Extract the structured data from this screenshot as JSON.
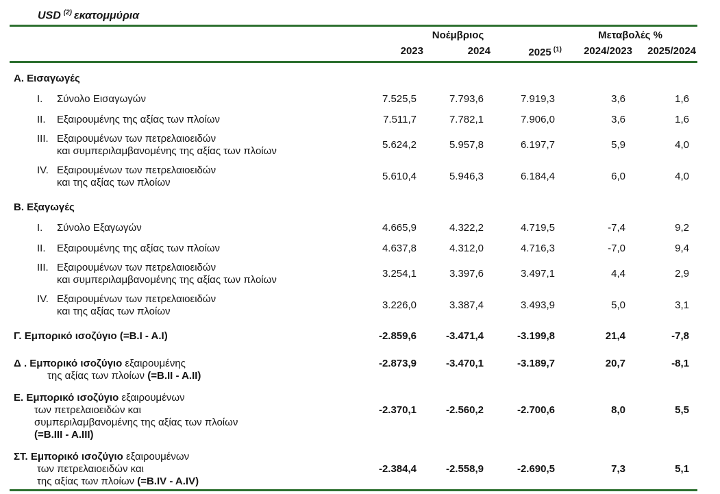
{
  "title": {
    "currency": "USD",
    "footnote_marker": "(2)",
    "unit": "εκατομμύρια"
  },
  "header": {
    "period_group": "Νοέμβριος",
    "changes_group": "Μεταβολές %",
    "columns": [
      {
        "label": "2023",
        "footnote": ""
      },
      {
        "label": "2024",
        "footnote": ""
      },
      {
        "label": "2025",
        "footnote": "(1)"
      },
      {
        "label": "2024/2023",
        "footnote": ""
      },
      {
        "label": "2025/2024",
        "footnote": ""
      }
    ]
  },
  "rows": [
    {
      "type": "section",
      "label": "Α. Εισαγωγές"
    },
    {
      "type": "item",
      "numeral": "I.",
      "lines": [
        "Σύνολο Εισαγωγών"
      ],
      "values": [
        "7.525,5",
        "7.793,6",
        "7.919,3",
        "3,6",
        "1,6"
      ]
    },
    {
      "type": "item",
      "numeral": "II.",
      "lines": [
        "Εξαιρουμένης της αξίας των πλοίων"
      ],
      "values": [
        "7.511,7",
        "7.782,1",
        "7.906,0",
        "3,6",
        "1,6"
      ]
    },
    {
      "type": "item",
      "numeral": "III.",
      "lines": [
        "Εξαιρουμένων των πετρελαιοειδών",
        "και συμπεριλαμβανομένης της αξίας των πλοίων"
      ],
      "values": [
        "5.624,2",
        "5.957,8",
        "6.197,7",
        "5,9",
        "4,0"
      ]
    },
    {
      "type": "item",
      "numeral": "IV.",
      "lines": [
        "Εξαιρουμένων των πετρελαιοειδών",
        "και  της αξίας των πλοίων"
      ],
      "values": [
        "5.610,4",
        "5.946,3",
        "6.184,4",
        "6,0",
        "4,0"
      ]
    },
    {
      "type": "section",
      "label": "Β. Εξαγωγές"
    },
    {
      "type": "item",
      "numeral": "I.",
      "lines": [
        "Σύνολο Εξαγωγών"
      ],
      "values": [
        "4.665,9",
        "4.322,2",
        "4.719,5",
        "-7,4",
        "9,2"
      ]
    },
    {
      "type": "item",
      "numeral": "II.",
      "lines": [
        "Εξαιρουμένης της αξίας των πλοίων"
      ],
      "values": [
        "4.637,8",
        "4.312,0",
        "4.716,3",
        "-7,0",
        "9,4"
      ]
    },
    {
      "type": "item",
      "numeral": "III.",
      "lines": [
        "Εξαιρουμένων των πετρελαιοειδών",
        "και συμπεριλαμβανομένης της αξίας των πλοίων"
      ],
      "values": [
        "3.254,1",
        "3.397,6",
        "3.497,1",
        "4,4",
        "2,9"
      ]
    },
    {
      "type": "item",
      "numeral": "IV.",
      "lines": [
        "Εξαιρουμένων των πετρελαιοειδών",
        "και της αξίας των πλοίων"
      ],
      "values": [
        "3.226,0",
        "3.387,4",
        "3.493,9",
        "5,0",
        "3,1"
      ]
    },
    {
      "type": "summary",
      "key": "g",
      "lines": [
        [
          {
            "t": "Γ. Εμπορικό ισοζύγιο (=B.I - A.I)",
            "b": true
          }
        ]
      ],
      "values": [
        "-2.859,6",
        "-3.471,4",
        "-3.199,8",
        "21,4",
        "-7,8"
      ]
    },
    {
      "type": "summary",
      "key": "d",
      "lines": [
        [
          {
            "t": "Δ . Εμπορικό ισοζύγιο ",
            "b": true
          },
          {
            "t": "εξαιρουμένης",
            "b": false
          }
        ],
        [
          {
            "t": "της αξίας των πλοίων ",
            "b": false
          },
          {
            "t": "(=B.II - A.II)",
            "b": true
          }
        ]
      ],
      "values": [
        "-2.873,9",
        "-3.470,1",
        "-3.189,7",
        "20,7",
        "-8,1"
      ]
    },
    {
      "type": "summary",
      "key": "e",
      "lines": [
        [
          {
            "t": "Ε. Εμπορικό ισοζύγιο ",
            "b": true
          },
          {
            "t": "εξαιρουμένων",
            "b": false
          }
        ],
        [
          {
            "t": "των πετρελαιοειδών και",
            "b": false
          }
        ],
        [
          {
            "t": "συμπεριλαμβανομένης της αξίας των πλοίων",
            "b": false
          }
        ],
        [
          {
            "t": "(=B.III - A.III)",
            "b": true
          }
        ]
      ],
      "values": [
        "-2.370,1",
        "-2.560,2",
        "-2.700,6",
        "8,0",
        "5,5"
      ]
    },
    {
      "type": "summary",
      "key": "st",
      "lines": [
        [
          {
            "t": "ΣΤ. Εμπορικό ισοζύγιο ",
            "b": true
          },
          {
            "t": "εξαιρουμένων",
            "b": false
          }
        ],
        [
          {
            "t": "των πετρελαιοειδών και",
            "b": false
          }
        ],
        [
          {
            "t": "της αξίας των πλοίων ",
            "b": false
          },
          {
            "t": "(=B.IV - A.IV)",
            "b": true
          }
        ]
      ],
      "values": [
        "-2.384,4",
        "-2.558,9",
        "-2.690,5",
        "7,3",
        "5,1"
      ]
    }
  ]
}
